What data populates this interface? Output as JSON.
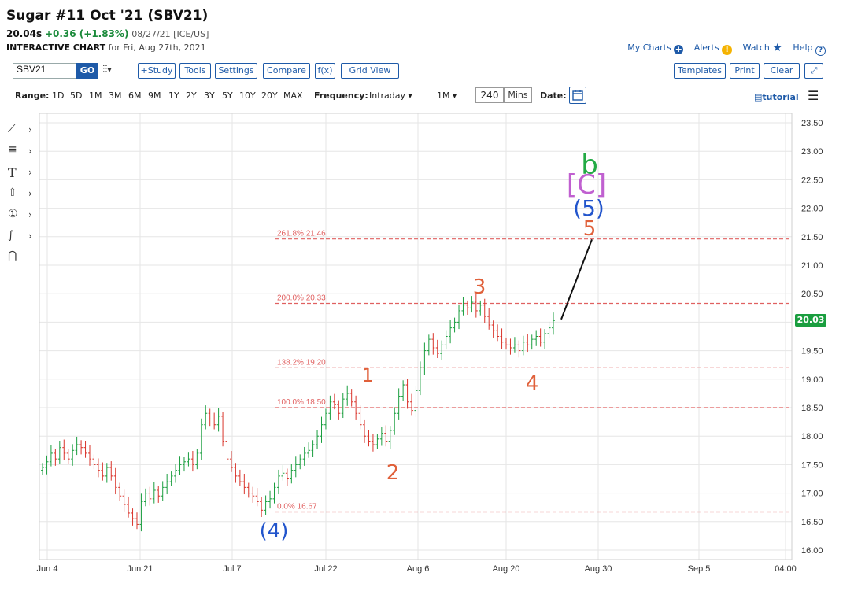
{
  "header": {
    "title": "Sugar #11 Oct '21 (SBV21)",
    "last": "20.04s",
    "change": "+0.36 (+1.83%)",
    "meta": "08/27/21 [ICE/US]",
    "ic_label": "INTERACTIVE CHART",
    "ic_for": "for Fri, Aug 27th, 2021"
  },
  "top_links": {
    "my_charts": "My Charts",
    "alerts": "Alerts",
    "watch": "Watch",
    "help": "Help"
  },
  "toolbar": {
    "symbol_value": "SBV21",
    "go": "GO",
    "buttons": [
      "+Study",
      "Tools",
      "Settings",
      "Compare",
      "f(x)",
      "Grid View"
    ],
    "right_buttons": [
      "Templates",
      "Print",
      "Clear"
    ]
  },
  "rangebar": {
    "range_label": "Range:",
    "ranges": [
      "1D",
      "5D",
      "1M",
      "3M",
      "6M",
      "9M",
      "1Y",
      "2Y",
      "3Y",
      "5Y",
      "10Y",
      "20Y",
      "MAX"
    ],
    "frequency_label": "Frequency:",
    "frequency": "Intraday",
    "period": "1M",
    "interval": "240",
    "interval_unit": "Mins",
    "date_label": "Date:",
    "tutorial": "tutorial"
  },
  "colors": {
    "up": "#1a9e3f",
    "down": "#d9342b",
    "fib": "#e06060",
    "accent": "#1e5aa8"
  },
  "icons": [
    "line-draw-icon",
    "fib-tool-icon",
    "text-tool-icon",
    "arrow-tool-icon",
    "counter-tool-icon",
    "pattern-tool-icon",
    "magnet-icon"
  ],
  "chart_data": {
    "type": "line",
    "title": "",
    "ylim": [
      16.0,
      23.5
    ],
    "y_ticks": [
      "23.50",
      "23.00",
      "22.50",
      "22.00",
      "21.50",
      "21.00",
      "20.50",
      "20.00",
      "19.50",
      "19.00",
      "18.50",
      "18.00",
      "17.50",
      "17.00",
      "16.50",
      "16.00"
    ],
    "x_ticks": [
      "Jun 4",
      "Jun 21",
      "Jul 7",
      "Jul 22",
      "Aug 6",
      "Aug 20",
      "Aug 30",
      "Sep 5",
      "04:00"
    ],
    "grid": true,
    "last_price": "20.03",
    "fib_levels": [
      {
        "label": "261.8% 21.46",
        "value": 21.46
      },
      {
        "label": "200.0% 20.33",
        "value": 20.33
      },
      {
        "label": "138.2% 19.20",
        "value": 19.2
      },
      {
        "label": "100.0% 18.50",
        "value": 18.5
      },
      {
        "label": "0.0% 16.67",
        "value": 16.67
      }
    ],
    "wave_labels": [
      {
        "text": "(4)",
        "color": "#2255cc"
      },
      {
        "text": "1",
        "color": "#e0603a"
      },
      {
        "text": "2",
        "color": "#e0603a"
      },
      {
        "text": "3",
        "color": "#e0603a"
      },
      {
        "text": "4",
        "color": "#e0603a"
      },
      {
        "text": "5",
        "color": "#e0603a"
      },
      {
        "text": "(5)",
        "color": "#2255cc"
      },
      {
        "text": "[C]",
        "color": "#c060d0"
      },
      {
        "text": "b",
        "color": "#22aa44"
      }
    ],
    "projection": {
      "from": 20.05,
      "to": 21.45
    },
    "closes": [
      17.45,
      17.55,
      17.7,
      17.6,
      17.8,
      17.7,
      17.6,
      17.75,
      17.85,
      17.8,
      17.7,
      17.6,
      17.5,
      17.4,
      17.3,
      17.45,
      17.3,
      17.1,
      16.95,
      16.8,
      16.65,
      16.55,
      16.45,
      16.85,
      17.0,
      16.9,
      17.05,
      16.95,
      17.1,
      17.2,
      17.3,
      17.4,
      17.5,
      17.55,
      17.6,
      17.5,
      17.7,
      18.2,
      18.4,
      18.3,
      18.2,
      18.35,
      17.9,
      17.6,
      17.45,
      17.3,
      17.2,
      17.1,
      17.0,
      16.95,
      16.85,
      16.7,
      16.85,
      16.9,
      17.1,
      17.3,
      17.35,
      17.25,
      17.4,
      17.5,
      17.6,
      17.7,
      17.75,
      17.85,
      18.0,
      18.2,
      18.4,
      18.6,
      18.55,
      18.4,
      18.65,
      18.75,
      18.6,
      18.4,
      18.2,
      18.0,
      17.9,
      17.85,
      17.95,
      18.05,
      17.9,
      18.1,
      18.4,
      18.7,
      18.9,
      18.6,
      18.45,
      18.8,
      19.2,
      19.5,
      19.7,
      19.55,
      19.45,
      19.6,
      19.75,
      19.9,
      20.0,
      20.2,
      20.3,
      20.25,
      20.35,
      20.2,
      20.3,
      20.1,
      19.95,
      19.85,
      19.75,
      19.65,
      19.6,
      19.55,
      19.6,
      19.5,
      19.65,
      19.6,
      19.7,
      19.75,
      19.65,
      19.8,
      19.9,
      20.03
    ]
  }
}
